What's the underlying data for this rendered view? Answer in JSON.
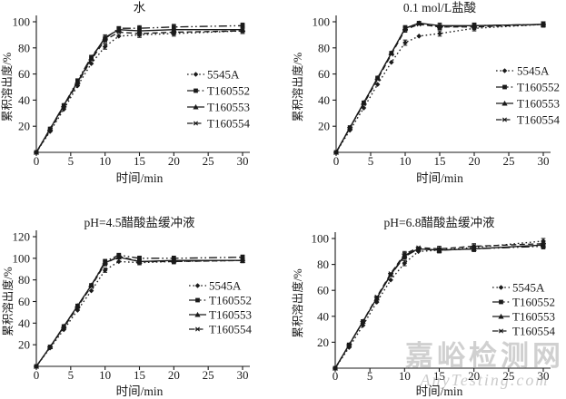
{
  "watermark": {
    "line1": "嘉峪检测网",
    "line2": "AnyTesting.com"
  },
  "colors": {
    "line": "#1a1a1a",
    "text": "#1a1a1a",
    "watermark": "#a0a0a0"
  },
  "chart_data": [
    {
      "type": "line",
      "title": "水",
      "xlabel": "时间/min",
      "ylabel": "累积溶出度/%",
      "xlim": [
        0,
        30
      ],
      "ylim": [
        0,
        100
      ],
      "xticks": [
        0,
        5,
        10,
        15,
        20,
        25,
        30
      ],
      "yticks": [
        20,
        40,
        60,
        80,
        100
      ],
      "grid": false,
      "legend_position": "right-middle",
      "error_bar_times": [
        10,
        15,
        20,
        30
      ],
      "error_bar_halfwidth": 2,
      "x": [
        0,
        2,
        4,
        6,
        8,
        10,
        12,
        15,
        20,
        30
      ],
      "series": [
        {
          "name": "5545A",
          "line_style": "dotted",
          "marker": "diamond",
          "values": [
            0,
            16,
            33,
            51,
            68,
            81,
            89,
            90,
            91,
            93
          ]
        },
        {
          "name": "T160552",
          "line_style": "dash-dot-dot",
          "marker": "square",
          "values": [
            0,
            18,
            36,
            55,
            73,
            87,
            95,
            95,
            96,
            97
          ]
        },
        {
          "name": "T160553",
          "line_style": "solid",
          "marker": "triangle",
          "values": [
            0,
            18,
            36,
            54,
            72,
            88,
            94,
            93,
            94,
            94
          ]
        },
        {
          "name": "T160554",
          "line_style": "dashed",
          "marker": "star",
          "values": [
            0,
            17,
            35,
            53,
            71,
            86,
            92,
            91,
            92,
            93
          ]
        }
      ]
    },
    {
      "type": "line",
      "title": "0.1 mol/L盐酸",
      "xlabel": "时间/min",
      "ylabel": "累积溶出度/%",
      "xlim": [
        0,
        30
      ],
      "ylim": [
        0,
        100
      ],
      "xticks": [
        0,
        5,
        10,
        15,
        20,
        25,
        30
      ],
      "yticks": [
        20,
        40,
        60,
        80,
        100
      ],
      "grid": false,
      "legend_position": "right-middle",
      "error_bar_times": [
        10,
        15,
        20,
        30
      ],
      "error_bar_halfwidth": 2,
      "x": [
        0,
        2,
        4,
        6,
        8,
        10,
        12,
        15,
        20,
        30
      ],
      "series": [
        {
          "name": "5545A",
          "line_style": "dotted",
          "marker": "diamond",
          "values": [
            0,
            17,
            34,
            52,
            69,
            84,
            89,
            91,
            95,
            98
          ]
        },
        {
          "name": "T160552",
          "line_style": "dash-dot-dot",
          "marker": "square",
          "values": [
            0,
            19,
            38,
            57,
            76,
            95,
            99,
            96,
            97,
            98
          ]
        },
        {
          "name": "T160553",
          "line_style": "solid",
          "marker": "triangle",
          "values": [
            0,
            19,
            38,
            57,
            76,
            95,
            99,
            97,
            97,
            98
          ]
        },
        {
          "name": "T160554",
          "line_style": "dashed",
          "marker": "star",
          "values": [
            0,
            19,
            37,
            56,
            75,
            94,
            98,
            96,
            96,
            98
          ]
        }
      ]
    },
    {
      "type": "line",
      "title": "pH=4.5醋酸盐缓冲液",
      "xlabel": "时间/min",
      "ylabel": "累积溶出度/%",
      "xlim": [
        0,
        30
      ],
      "ylim": [
        0,
        120
      ],
      "xticks": [
        0,
        5,
        10,
        15,
        20,
        25,
        30
      ],
      "yticks": [
        20,
        40,
        60,
        80,
        100,
        120
      ],
      "grid": false,
      "legend_position": "right-middle",
      "error_bar_times": [
        10,
        15,
        20,
        30
      ],
      "error_bar_halfwidth": 2,
      "x": [
        0,
        2,
        4,
        6,
        8,
        10,
        12,
        15,
        20,
        30
      ],
      "series": [
        {
          "name": "5545A",
          "line_style": "dotted",
          "marker": "diamond",
          "values": [
            0,
            17,
            34,
            52,
            70,
            89,
            97,
            96,
            97,
            98
          ]
        },
        {
          "name": "T160552",
          "line_style": "dash-dot-dot",
          "marker": "square",
          "values": [
            0,
            18,
            37,
            56,
            75,
            97,
            103,
            100,
            100,
            101
          ]
        },
        {
          "name": "T160553",
          "line_style": "solid",
          "marker": "triangle",
          "values": [
            0,
            18,
            37,
            56,
            75,
            96,
            101,
            97,
            98,
            98
          ]
        },
        {
          "name": "T160554",
          "line_style": "dashed",
          "marker": "star",
          "values": [
            0,
            18,
            36,
            55,
            74,
            95,
            102,
            97,
            97,
            98
          ]
        }
      ]
    },
    {
      "type": "line",
      "title": "pH=6.8醋酸盐缓冲液",
      "xlabel": "时间/min",
      "ylabel": "累积溶出度/%",
      "xlim": [
        0,
        30
      ],
      "ylim": [
        0,
        100
      ],
      "xticks": [
        0,
        5,
        10,
        15,
        20,
        25,
        30
      ],
      "yticks": [
        20,
        40,
        60,
        80,
        100
      ],
      "grid": false,
      "legend_position": "right-middle",
      "error_bar_times": [
        10,
        15,
        20,
        30
      ],
      "error_bar_halfwidth": 2,
      "x": [
        0,
        2,
        4,
        6,
        8,
        10,
        12,
        15,
        20,
        30
      ],
      "series": [
        {
          "name": "5545A",
          "line_style": "dotted",
          "marker": "diamond",
          "values": [
            0,
            16,
            33,
            51,
            68,
            81,
            90,
            91,
            93,
            98
          ]
        },
        {
          "name": "T160552",
          "line_style": "dash-dot-dot",
          "marker": "square",
          "values": [
            0,
            18,
            36,
            54,
            72,
            86,
            92,
            91,
            92,
            94
          ]
        },
        {
          "name": "T160553",
          "line_style": "solid",
          "marker": "triangle",
          "values": [
            0,
            18,
            36,
            54,
            72,
            87,
            92,
            91,
            92,
            95
          ]
        },
        {
          "name": "T160554",
          "line_style": "dashed",
          "marker": "star",
          "values": [
            0,
            18,
            36,
            55,
            73,
            88,
            93,
            92,
            94,
            96
          ]
        }
      ]
    }
  ]
}
